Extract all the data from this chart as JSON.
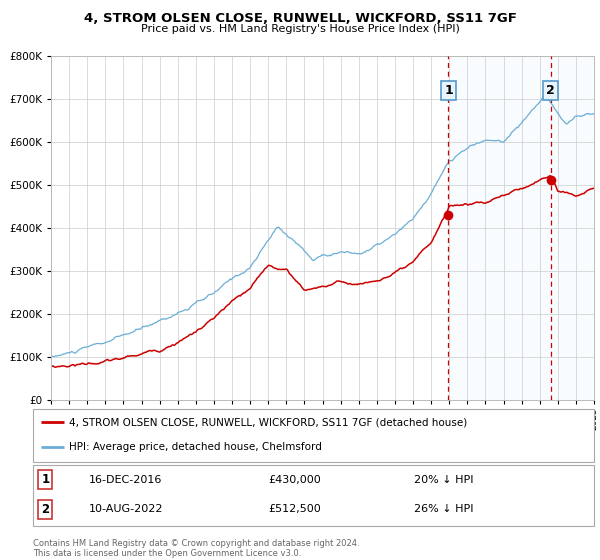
{
  "title": "4, STROM OLSEN CLOSE, RUNWELL, WICKFORD, SS11 7GF",
  "subtitle": "Price paid vs. HM Land Registry's House Price Index (HPI)",
  "legend_line1": "4, STROM OLSEN CLOSE, RUNWELL, WICKFORD, SS11 7GF (detached house)",
  "legend_line2": "HPI: Average price, detached house, Chelmsford",
  "annotation1_label": "1",
  "annotation1_date": "16-DEC-2016",
  "annotation1_price": "£430,000",
  "annotation1_hpi": "20% ↓ HPI",
  "annotation2_label": "2",
  "annotation2_date": "10-AUG-2022",
  "annotation2_price": "£512,500",
  "annotation2_hpi": "26% ↓ HPI",
  "footer1": "Contains HM Land Registry data © Crown copyright and database right 2024.",
  "footer2": "This data is licensed under the Open Government Licence v3.0.",
  "sale1_year": 2016.96,
  "sale1_price": 430000,
  "sale2_year": 2022.61,
  "sale2_price": 512500,
  "hpi_color": "#6baed6",
  "hpi_fill_color": "#ddeeff",
  "price_color": "#cc0000",
  "marker_color": "#cc0000",
  "vline_color": "#cc0000",
  "ann_box_bg": "#e8f4fb",
  "ann_box_edge": "#5599cc",
  "table_box_edge": "#cc3333",
  "background_color": "#ffffff",
  "grid_color": "#cccccc",
  "ylim_max": 800000,
  "ylim_min": 0,
  "xlim_min": 1995,
  "xlim_max": 2025
}
